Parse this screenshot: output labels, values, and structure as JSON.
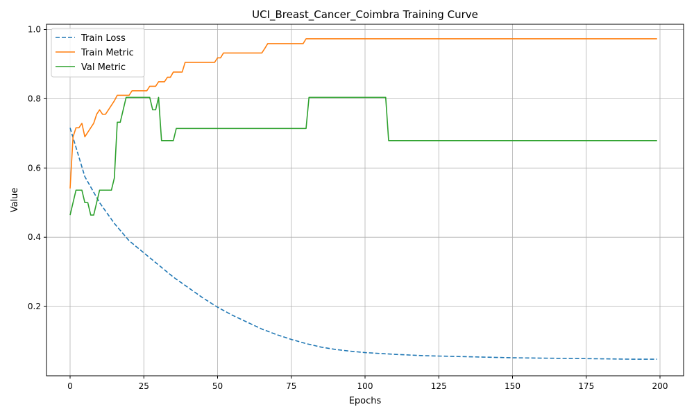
{
  "chart_data": {
    "type": "line",
    "title": "UCI_Breast_Cancer_Coimbra Training Curve",
    "xlabel": "Epochs",
    "ylabel": "Value",
    "xlim": [
      -8,
      208
    ],
    "ylim": [
      0.0,
      1.015
    ],
    "xticks": [
      0,
      25,
      50,
      75,
      100,
      125,
      150,
      175,
      200
    ],
    "yticks": [
      0.2,
      0.4,
      0.6,
      0.8,
      1.0
    ],
    "ytick_labels": [
      "0.2",
      "0.4",
      "0.6",
      "0.8",
      "1.0"
    ],
    "grid": true,
    "legend_position": "top-left",
    "series": [
      {
        "name": "Train Loss",
        "color": "#1f77b4",
        "style": "dashed",
        "x": [
          0,
          5,
          10,
          15,
          20,
          25,
          30,
          35,
          40,
          45,
          50,
          55,
          60,
          65,
          70,
          75,
          80,
          85,
          90,
          95,
          100,
          110,
          120,
          130,
          140,
          150,
          160,
          170,
          180,
          190,
          199
        ],
        "y": [
          0.716,
          0.575,
          0.5,
          0.44,
          0.39,
          0.355,
          0.32,
          0.285,
          0.255,
          0.225,
          0.198,
          0.175,
          0.155,
          0.135,
          0.119,
          0.105,
          0.093,
          0.083,
          0.076,
          0.071,
          0.067,
          0.062,
          0.058,
          0.056,
          0.054,
          0.052,
          0.051,
          0.05,
          0.049,
          0.048,
          0.048
        ]
      },
      {
        "name": "Train Metric",
        "color": "#ff7f0e",
        "style": "solid",
        "x": [
          0,
          1,
          2,
          3,
          4,
          5,
          6,
          7,
          8,
          9,
          10,
          11,
          12,
          13,
          14,
          15,
          16,
          17,
          18,
          19,
          20,
          21,
          22,
          23,
          24,
          25,
          26,
          27,
          28,
          29,
          30,
          31,
          32,
          33,
          34,
          35,
          36,
          37,
          38,
          39,
          40,
          45,
          49,
          50,
          51,
          52,
          55,
          60,
          65,
          66,
          67,
          70,
          75,
          79,
          80,
          81,
          100,
          150,
          199
        ],
        "y": [
          0.541,
          0.69,
          0.716,
          0.716,
          0.729,
          0.69,
          0.703,
          0.716,
          0.729,
          0.755,
          0.768,
          0.755,
          0.755,
          0.768,
          0.781,
          0.794,
          0.81,
          0.81,
          0.81,
          0.81,
          0.81,
          0.823,
          0.823,
          0.823,
          0.823,
          0.823,
          0.823,
          0.836,
          0.836,
          0.836,
          0.849,
          0.849,
          0.849,
          0.862,
          0.862,
          0.877,
          0.877,
          0.877,
          0.877,
          0.905,
          0.905,
          0.905,
          0.905,
          0.918,
          0.918,
          0.932,
          0.932,
          0.932,
          0.932,
          0.945,
          0.959,
          0.959,
          0.959,
          0.959,
          0.973,
          0.973,
          0.973,
          0.973,
          0.973
        ]
      },
      {
        "name": "Val Metric",
        "color": "#2ca02c",
        "style": "solid",
        "x": [
          0,
          1,
          2,
          3,
          4,
          5,
          6,
          7,
          8,
          9,
          10,
          11,
          12,
          13,
          14,
          15,
          16,
          17,
          18,
          19,
          20,
          25,
          27,
          28,
          29,
          30,
          31,
          32,
          33,
          34,
          35,
          36,
          40,
          50,
          60,
          70,
          80,
          81,
          90,
          100,
          107,
          108,
          120,
          150,
          199
        ],
        "y": [
          0.464,
          0.5,
          0.536,
          0.536,
          0.536,
          0.5,
          0.5,
          0.464,
          0.464,
          0.5,
          0.536,
          0.536,
          0.536,
          0.536,
          0.536,
          0.571,
          0.732,
          0.732,
          0.768,
          0.804,
          0.804,
          0.804,
          0.804,
          0.768,
          0.768,
          0.804,
          0.679,
          0.679,
          0.679,
          0.679,
          0.679,
          0.714,
          0.714,
          0.714,
          0.714,
          0.714,
          0.714,
          0.804,
          0.804,
          0.804,
          0.804,
          0.679,
          0.679,
          0.679,
          0.679
        ]
      }
    ]
  }
}
